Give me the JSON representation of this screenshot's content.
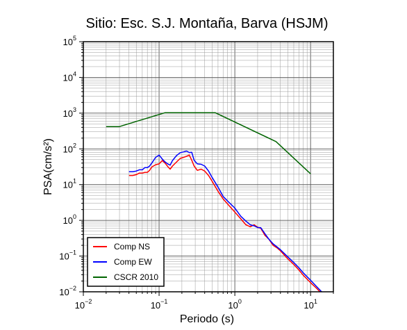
{
  "chart_data": {
    "type": "line",
    "title": "Sitio: Esc. S.J. Montaña, Barva (HSJM)",
    "xlabel": "Periodo (s)",
    "ylabel": "PSA(cm/s²)",
    "xscale": "log",
    "yscale": "log",
    "xlim": [
      0.01,
      20
    ],
    "ylim": [
      0.01,
      100000
    ],
    "x_ticks": [
      {
        "base": "10",
        "exp": "−2"
      },
      {
        "base": "10",
        "exp": "−1"
      },
      {
        "base": "10",
        "exp": "0"
      },
      {
        "base": "10",
        "exp": "1"
      }
    ],
    "y_ticks": [
      {
        "base": "10",
        "exp": "−2"
      },
      {
        "base": "10",
        "exp": "−1"
      },
      {
        "base": "10",
        "exp": "0"
      },
      {
        "base": "10",
        "exp": "1"
      },
      {
        "base": "10",
        "exp": "2"
      },
      {
        "base": "10",
        "exp": "3"
      },
      {
        "base": "10",
        "exp": "4"
      },
      {
        "base": "10",
        "exp": "5"
      }
    ],
    "grid": true,
    "legend_position": "bottom-left",
    "series": [
      {
        "name": "Comp NS",
        "color": "#ff0000",
        "x": [
          0.04,
          0.045,
          0.05,
          0.055,
          0.06,
          0.065,
          0.07,
          0.075,
          0.08,
          0.09,
          0.1,
          0.11,
          0.12,
          0.13,
          0.14,
          0.15,
          0.17,
          0.19,
          0.21,
          0.23,
          0.25,
          0.27,
          0.29,
          0.32,
          0.36,
          0.4,
          0.45,
          0.5,
          0.6,
          0.7,
          0.8,
          1.0,
          1.2,
          1.4,
          1.6,
          1.8,
          2.0,
          2.2,
          2.5,
          2.8,
          3.2,
          3.6,
          4.0,
          5.0,
          6.0,
          7.0,
          8.0,
          10.0,
          12.0,
          14.0
        ],
        "y": [
          18,
          18,
          19,
          21,
          21,
          22,
          22,
          25,
          31,
          36,
          38,
          47,
          40,
          32,
          27,
          33,
          43,
          54,
          58,
          62,
          67,
          48,
          33,
          25,
          27,
          24,
          18,
          12.5,
          6.5,
          4.0,
          2.9,
          1.7,
          1.1,
          0.75,
          0.66,
          0.75,
          0.64,
          0.6,
          0.38,
          0.3,
          0.2,
          0.17,
          0.14,
          0.084,
          0.058,
          0.041,
          0.029,
          0.018,
          0.0125,
          0.009
        ]
      },
      {
        "name": "Comp EW",
        "color": "#0000ff",
        "x": [
          0.04,
          0.045,
          0.05,
          0.055,
          0.06,
          0.065,
          0.07,
          0.075,
          0.08,
          0.09,
          0.1,
          0.11,
          0.12,
          0.13,
          0.14,
          0.15,
          0.17,
          0.19,
          0.21,
          0.23,
          0.25,
          0.27,
          0.29,
          0.32,
          0.36,
          0.4,
          0.45,
          0.5,
          0.6,
          0.7,
          0.8,
          1.0,
          1.2,
          1.4,
          1.6,
          1.8,
          2.0,
          2.2,
          2.5,
          2.8,
          3.2,
          3.6,
          4.0,
          5.0,
          6.0,
          7.0,
          8.0,
          10.0,
          12.0,
          14.0,
          15.0
        ],
        "y": [
          23,
          23,
          24,
          26,
          26,
          30,
          30,
          33,
          40,
          58,
          67,
          52,
          43,
          38,
          35,
          47,
          65,
          78,
          82,
          87,
          79,
          80,
          48,
          38,
          37,
          33,
          24,
          16,
          8.5,
          4.7,
          3.5,
          2.2,
          1.3,
          0.95,
          0.75,
          0.7,
          0.63,
          0.62,
          0.42,
          0.3,
          0.22,
          0.18,
          0.15,
          0.095,
          0.066,
          0.047,
          0.034,
          0.021,
          0.014,
          0.01,
          0.0095
        ]
      },
      {
        "name": "CSCR 2010",
        "color": "#006400",
        "x": [
          0.02,
          0.03,
          0.12,
          0.55,
          3.5,
          10.0
        ],
        "y": [
          420,
          420,
          1030,
          1030,
          160,
          20
        ]
      }
    ]
  }
}
